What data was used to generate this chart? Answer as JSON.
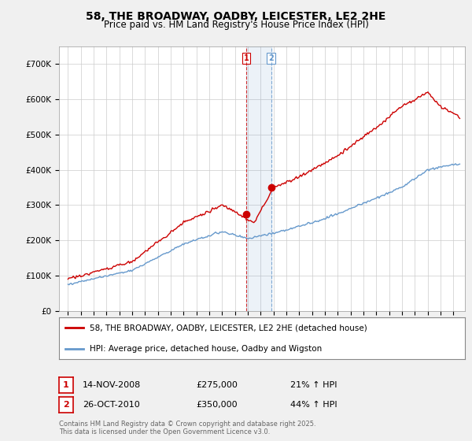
{
  "title": "58, THE BROADWAY, OADBY, LEICESTER, LE2 2HE",
  "subtitle": "Price paid vs. HM Land Registry's House Price Index (HPI)",
  "legend_label_red": "58, THE BROADWAY, OADBY, LEICESTER, LE2 2HE (detached house)",
  "legend_label_blue": "HPI: Average price, detached house, Oadby and Wigston",
  "footer": "Contains HM Land Registry data © Crown copyright and database right 2025.\nThis data is licensed under the Open Government Licence v3.0.",
  "transaction1_date": "14-NOV-2008",
  "transaction1_price": "£275,000",
  "transaction1_hpi": "21% ↑ HPI",
  "transaction2_date": "26-OCT-2010",
  "transaction2_price": "£350,000",
  "transaction2_hpi": "44% ↑ HPI",
  "ylim": [
    0,
    750000
  ],
  "yticks": [
    0,
    100000,
    200000,
    300000,
    400000,
    500000,
    600000,
    700000
  ],
  "ytick_labels": [
    "£0",
    "£100K",
    "£200K",
    "£300K",
    "£400K",
    "£500K",
    "£600K",
    "£700K"
  ],
  "background_color": "#f0f0f0",
  "plot_bg_color": "#ffffff",
  "red_color": "#cc0000",
  "blue_color": "#6699cc",
  "marker1_x": 2008.87,
  "marker1_y": 275000,
  "marker2_x": 2010.82,
  "marker2_y": 350000,
  "vline1_x": 2008.87,
  "vline2_x": 2010.82,
  "xlim_left": 1994.3,
  "xlim_right": 2025.9
}
